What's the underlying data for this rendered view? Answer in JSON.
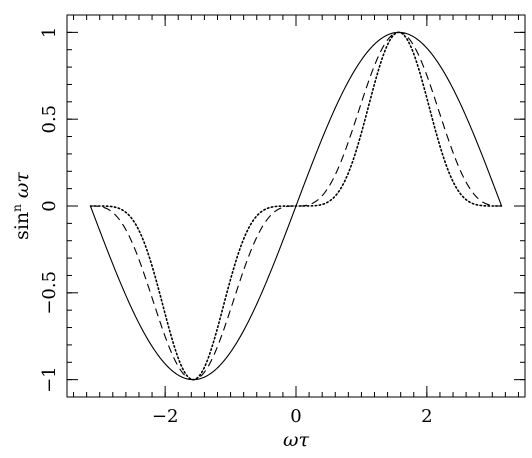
{
  "chart_data": {
    "type": "line",
    "title": "",
    "xlabel": "ωτ",
    "ylabel_prefix": "sin",
    "ylabel_superscript": "n",
    "ylabel_suffix": "ωτ",
    "xlim": [
      -3.5,
      3.5
    ],
    "ylim": [
      -1.1,
      1.1
    ],
    "x_ticks_major": [
      -2,
      0,
      2
    ],
    "x_tick_labels": [
      "−2",
      "0",
      "2"
    ],
    "x_ticks_minor_step": 0.2,
    "y_ticks_major": [
      -1,
      -0.5,
      0,
      0.5,
      1
    ],
    "y_tick_labels": [
      "−1",
      "−0.5",
      "0",
      "0.5",
      "1"
    ],
    "y_ticks_minor_step": 0.1,
    "grid": false,
    "x_range_sampled": [
      -3.14159,
      3.14159
    ],
    "series": [
      {
        "exponent": 1,
        "style": "solid",
        "color": "#000000"
      },
      {
        "exponent": 3,
        "style": "dashed",
        "color": "#000000"
      },
      {
        "exponent": 5,
        "style": "dotted",
        "color": "#000000"
      }
    ]
  }
}
